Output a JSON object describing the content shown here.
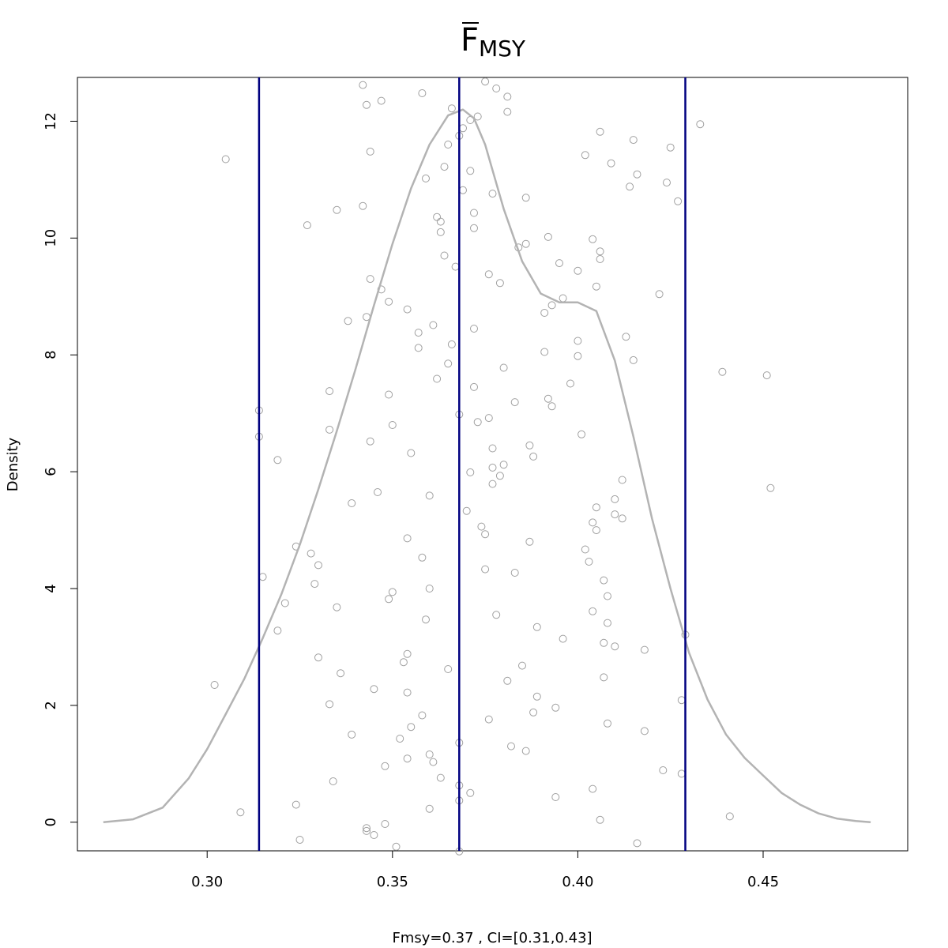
{
  "chart_data": {
    "type": "scatter",
    "title": "F",
    "title_subscript": "MSY",
    "title_overline": true,
    "xlabel": "Fmsy=0.37 , CI=[0.31,0.43]",
    "ylabel": "Density",
    "xlim": [
      0.265,
      0.489
    ],
    "ylim": [
      -0.49,
      12.75
    ],
    "x_ticks": [
      0.3,
      0.35,
      0.4,
      0.45
    ],
    "x_tick_labels": [
      "0.30",
      "0.35",
      "0.40",
      "0.45"
    ],
    "y_ticks": [
      0,
      2,
      4,
      6,
      8,
      10,
      12
    ],
    "y_tick_labels": [
      "0",
      "2",
      "4",
      "6",
      "8",
      "10",
      "12"
    ],
    "grid": false,
    "colors": {
      "points": "#a0a0a0",
      "density": "#b3b3b3",
      "vlines": "#000080"
    },
    "vlines": [
      0.314,
      0.368,
      0.429
    ],
    "density_curve": {
      "x": [
        0.272,
        0.28,
        0.288,
        0.295,
        0.3,
        0.305,
        0.31,
        0.315,
        0.32,
        0.325,
        0.33,
        0.335,
        0.34,
        0.345,
        0.35,
        0.355,
        0.36,
        0.365,
        0.369,
        0.372,
        0.375,
        0.38,
        0.385,
        0.39,
        0.395,
        0.4,
        0.405,
        0.41,
        0.415,
        0.42,
        0.425,
        0.43,
        0.435,
        0.44,
        0.445,
        0.45,
        0.455,
        0.46,
        0.465,
        0.47,
        0.475,
        0.479
      ],
      "y": [
        0.0,
        0.05,
        0.25,
        0.75,
        1.25,
        1.85,
        2.45,
        3.15,
        3.9,
        4.75,
        5.7,
        6.7,
        7.75,
        8.85,
        9.9,
        10.85,
        11.6,
        12.1,
        12.2,
        12.05,
        11.6,
        10.5,
        9.6,
        9.05,
        8.9,
        8.9,
        8.75,
        7.9,
        6.6,
        5.2,
        4.0,
        2.9,
        2.1,
        1.5,
        1.1,
        0.8,
        0.5,
        0.3,
        0.15,
        0.06,
        0.02,
        0.0
      ]
    },
    "points": [
      [
        0.305,
        11.35
      ],
      [
        0.302,
        2.35
      ],
      [
        0.309,
        0.17
      ],
      [
        0.314,
        7.05
      ],
      [
        0.314,
        6.6
      ],
      [
        0.315,
        4.2
      ],
      [
        0.319,
        6.2
      ],
      [
        0.319,
        3.28
      ],
      [
        0.321,
        3.75
      ],
      [
        0.324,
        4.72
      ],
      [
        0.324,
        0.3
      ],
      [
        0.325,
        -0.3
      ],
      [
        0.327,
        10.22
      ],
      [
        0.328,
        4.6
      ],
      [
        0.329,
        4.08
      ],
      [
        0.33,
        4.4
      ],
      [
        0.33,
        2.82
      ],
      [
        0.333,
        7.38
      ],
      [
        0.333,
        6.72
      ],
      [
        0.333,
        2.02
      ],
      [
        0.334,
        0.7
      ],
      [
        0.335,
        10.48
      ],
      [
        0.335,
        3.68
      ],
      [
        0.336,
        2.55
      ],
      [
        0.338,
        8.58
      ],
      [
        0.339,
        5.46
      ],
      [
        0.339,
        1.5
      ],
      [
        0.342,
        12.62
      ],
      [
        0.342,
        10.55
      ],
      [
        0.343,
        12.28
      ],
      [
        0.343,
        8.65
      ],
      [
        0.344,
        11.48
      ],
      [
        0.344,
        9.3
      ],
      [
        0.344,
        6.52
      ],
      [
        0.345,
        2.28
      ],
      [
        0.346,
        5.65
      ],
      [
        0.343,
        -0.15
      ],
      [
        0.343,
        -0.1
      ],
      [
        0.345,
        -0.22
      ],
      [
        0.347,
        12.35
      ],
      [
        0.347,
        9.12
      ],
      [
        0.348,
        -0.03
      ],
      [
        0.348,
        0.96
      ],
      [
        0.349,
        8.91
      ],
      [
        0.349,
        7.32
      ],
      [
        0.349,
        3.82
      ],
      [
        0.35,
        6.8
      ],
      [
        0.35,
        3.94
      ],
      [
        0.351,
        -0.42
      ],
      [
        0.352,
        1.43
      ],
      [
        0.353,
        2.74
      ],
      [
        0.354,
        8.78
      ],
      [
        0.354,
        4.86
      ],
      [
        0.354,
        2.88
      ],
      [
        0.354,
        2.22
      ],
      [
        0.354,
        1.09
      ],
      [
        0.355,
        6.32
      ],
      [
        0.355,
        1.63
      ],
      [
        0.357,
        8.38
      ],
      [
        0.357,
        8.12
      ],
      [
        0.358,
        12.48
      ],
      [
        0.358,
        1.83
      ],
      [
        0.358,
        4.53
      ],
      [
        0.359,
        11.02
      ],
      [
        0.359,
        3.47
      ],
      [
        0.36,
        4.0
      ],
      [
        0.36,
        1.16
      ],
      [
        0.36,
        5.59
      ],
      [
        0.36,
        0.23
      ],
      [
        0.361,
        8.51
      ],
      [
        0.361,
        1.03
      ],
      [
        0.362,
        10.36
      ],
      [
        0.362,
        7.59
      ],
      [
        0.363,
        10.28
      ],
      [
        0.363,
        10.1
      ],
      [
        0.363,
        0.76
      ],
      [
        0.364,
        11.22
      ],
      [
        0.364,
        9.7
      ],
      [
        0.365,
        11.6
      ],
      [
        0.365,
        7.85
      ],
      [
        0.365,
        2.62
      ],
      [
        0.366,
        12.22
      ],
      [
        0.366,
        8.18
      ],
      [
        0.367,
        9.51
      ],
      [
        0.368,
        11.75
      ],
      [
        0.368,
        6.98
      ],
      [
        0.368,
        1.36
      ],
      [
        0.368,
        0.63
      ],
      [
        0.368,
        0.37
      ],
      [
        0.368,
        -0.5
      ],
      [
        0.369,
        11.88
      ],
      [
        0.369,
        10.82
      ],
      [
        0.37,
        5.33
      ],
      [
        0.371,
        12.02
      ],
      [
        0.371,
        5.99
      ],
      [
        0.371,
        0.5
      ],
      [
        0.371,
        11.15
      ],
      [
        0.372,
        10.43
      ],
      [
        0.372,
        10.17
      ],
      [
        0.372,
        7.45
      ],
      [
        0.372,
        8.45
      ],
      [
        0.373,
        12.08
      ],
      [
        0.373,
        6.85
      ],
      [
        0.374,
        5.06
      ],
      [
        0.375,
        12.68
      ],
      [
        0.375,
        4.93
      ],
      [
        0.375,
        4.33
      ],
      [
        0.376,
        6.92
      ],
      [
        0.376,
        1.76
      ],
      [
        0.376,
        9.38
      ],
      [
        0.377,
        10.76
      ],
      [
        0.377,
        6.4
      ],
      [
        0.377,
        6.07
      ],
      [
        0.377,
        5.79
      ],
      [
        0.378,
        12.56
      ],
      [
        0.378,
        3.55
      ],
      [
        0.379,
        9.23
      ],
      [
        0.379,
        5.93
      ],
      [
        0.38,
        7.78
      ],
      [
        0.38,
        6.12
      ],
      [
        0.381,
        12.16
      ],
      [
        0.381,
        12.42
      ],
      [
        0.381,
        2.42
      ],
      [
        0.382,
        1.3
      ],
      [
        0.383,
        4.27
      ],
      [
        0.383,
        7.19
      ],
      [
        0.384,
        9.84
      ],
      [
        0.385,
        2.68
      ],
      [
        0.386,
        10.69
      ],
      [
        0.386,
        9.9
      ],
      [
        0.386,
        1.22
      ],
      [
        0.387,
        4.8
      ],
      [
        0.387,
        6.45
      ],
      [
        0.388,
        1.88
      ],
      [
        0.388,
        6.26
      ],
      [
        0.389,
        2.15
      ],
      [
        0.389,
        3.34
      ],
      [
        0.391,
        8.05
      ],
      [
        0.391,
        8.72
      ],
      [
        0.392,
        10.02
      ],
      [
        0.392,
        7.25
      ],
      [
        0.393,
        7.12
      ],
      [
        0.393,
        8.85
      ],
      [
        0.394,
        1.96
      ],
      [
        0.394,
        0.43
      ],
      [
        0.395,
        9.57
      ],
      [
        0.396,
        3.14
      ],
      [
        0.396,
        8.97
      ],
      [
        0.398,
        7.51
      ],
      [
        0.4,
        9.44
      ],
      [
        0.4,
        7.98
      ],
      [
        0.4,
        8.24
      ],
      [
        0.401,
        6.64
      ],
      [
        0.402,
        11.42
      ],
      [
        0.402,
        4.67
      ],
      [
        0.403,
        4.46
      ],
      [
        0.404,
        9.98
      ],
      [
        0.404,
        3.61
      ],
      [
        0.404,
        0.57
      ],
      [
        0.404,
        5.13
      ],
      [
        0.405,
        5.0
      ],
      [
        0.405,
        5.39
      ],
      [
        0.405,
        9.17
      ],
      [
        0.406,
        11.82
      ],
      [
        0.406,
        9.64
      ],
      [
        0.406,
        9.77
      ],
      [
        0.406,
        0.04
      ],
      [
        0.407,
        4.14
      ],
      [
        0.407,
        2.48
      ],
      [
        0.407,
        3.07
      ],
      [
        0.408,
        1.69
      ],
      [
        0.408,
        3.41
      ],
      [
        0.408,
        3.87
      ],
      [
        0.409,
        11.28
      ],
      [
        0.41,
        5.53
      ],
      [
        0.41,
        5.27
      ],
      [
        0.41,
        3.01
      ],
      [
        0.412,
        5.86
      ],
      [
        0.412,
        5.2
      ],
      [
        0.413,
        8.31
      ],
      [
        0.414,
        10.88
      ],
      [
        0.415,
        11.68
      ],
      [
        0.415,
        7.91
      ],
      [
        0.416,
        11.09
      ],
      [
        0.416,
        -0.36
      ],
      [
        0.418,
        1.56
      ],
      [
        0.418,
        2.95
      ],
      [
        0.422,
        9.04
      ],
      [
        0.423,
        0.89
      ],
      [
        0.424,
        10.95
      ],
      [
        0.425,
        11.55
      ],
      [
        0.427,
        10.63
      ],
      [
        0.428,
        2.09
      ],
      [
        0.428,
        0.83
      ],
      [
        0.429,
        3.21
      ],
      [
        0.433,
        11.95
      ],
      [
        0.439,
        7.71
      ],
      [
        0.441,
        0.1
      ],
      [
        0.451,
        7.65
      ],
      [
        0.452,
        5.72
      ]
    ]
  }
}
